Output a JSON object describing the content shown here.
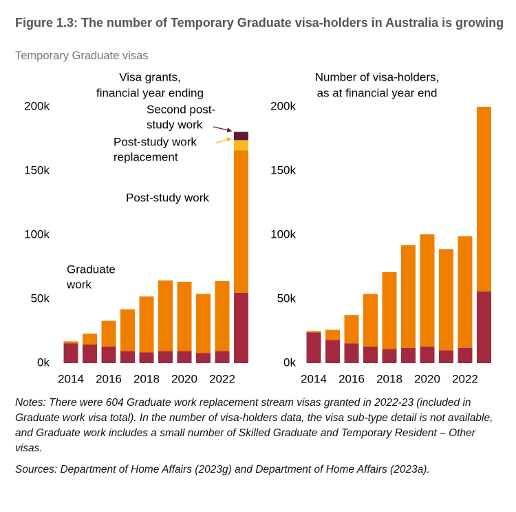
{
  "title": "Figure 1.3: The number of Temporary Graduate visa-holders in Australia is growing",
  "subtitle": "Temporary Graduate visas",
  "chart_data": [
    {
      "type": "stacked-bar",
      "title": [
        "Visa grants,",
        "financial year ending"
      ],
      "categories": [
        "2014",
        null,
        "2016",
        null,
        "2018",
        null,
        "2020",
        null,
        "2022",
        null
      ],
      "series": [
        {
          "label": [
            "Graduate",
            "work"
          ],
          "color": "#a3293f",
          "values": [
            15.5,
            14.5,
            13,
            9.5,
            8.5,
            9.5,
            9.5,
            8,
            9.5,
            55
          ]
        },
        {
          "label": [
            "Post-study work"
          ],
          "color": "#f07f00",
          "values": [
            1.5,
            8.5,
            20,
            32.5,
            43.5,
            55,
            54,
            46,
            54.5,
            111
          ]
        },
        {
          "label": [
            "Post-study work",
            "replacement"
          ],
          "color": "#f9b91d",
          "values": [
            null,
            null,
            null,
            null,
            null,
            null,
            null,
            null,
            null,
            8
          ]
        },
        {
          "label": [
            "Second post-",
            "study work"
          ],
          "color": "#5e1b33",
          "values": [
            null,
            null,
            null,
            null,
            null,
            null,
            null,
            null,
            null,
            6.5
          ]
        }
      ],
      "ylim": [
        0,
        200
      ],
      "yticks": [
        {
          "value": 0,
          "label": "0k"
        },
        {
          "value": 50,
          "label": "50k"
        },
        {
          "value": 100,
          "label": "100k"
        },
        {
          "value": 150,
          "label": "150k"
        },
        {
          "value": 200,
          "label": "200k"
        }
      ]
    },
    {
      "type": "stacked-bar",
      "title": [
        "Number of visa-holders,",
        "as at financial year end"
      ],
      "categories": [
        "2014",
        null,
        "2016",
        null,
        "2018",
        null,
        "2020",
        null,
        "2022",
        null
      ],
      "series": [
        {
          "color": "#a3293f",
          "values": [
            24,
            18,
            15.5,
            13,
            11,
            12,
            13,
            10,
            12,
            56
          ]
        },
        {
          "color": "#f07f00",
          "values": [
            1,
            8,
            22,
            41,
            60,
            80,
            87.5,
            79,
            87,
            144
          ]
        }
      ],
      "ylim": [
        0,
        200
      ],
      "yticks": [
        {
          "value": 0,
          "label": "0k"
        },
        {
          "value": 50,
          "label": "50k"
        },
        {
          "value": 100,
          "label": "100k"
        },
        {
          "value": 150,
          "label": "150k"
        },
        {
          "value": 200,
          "label": "200k"
        }
      ]
    }
  ],
  "notes": "Notes: There were 604 Graduate work replacement stream visas granted in 2022-23 (included in Graduate work visa total).  In the number of visa-holders data, the visa sub-type detail is not available, and Graduate work includes a small number of Skilled Graduate and Temporary Resident – Other visas.",
  "sources": "Sources: Department of Home Affairs (2023g) and Department of Home Affairs (2023a)."
}
